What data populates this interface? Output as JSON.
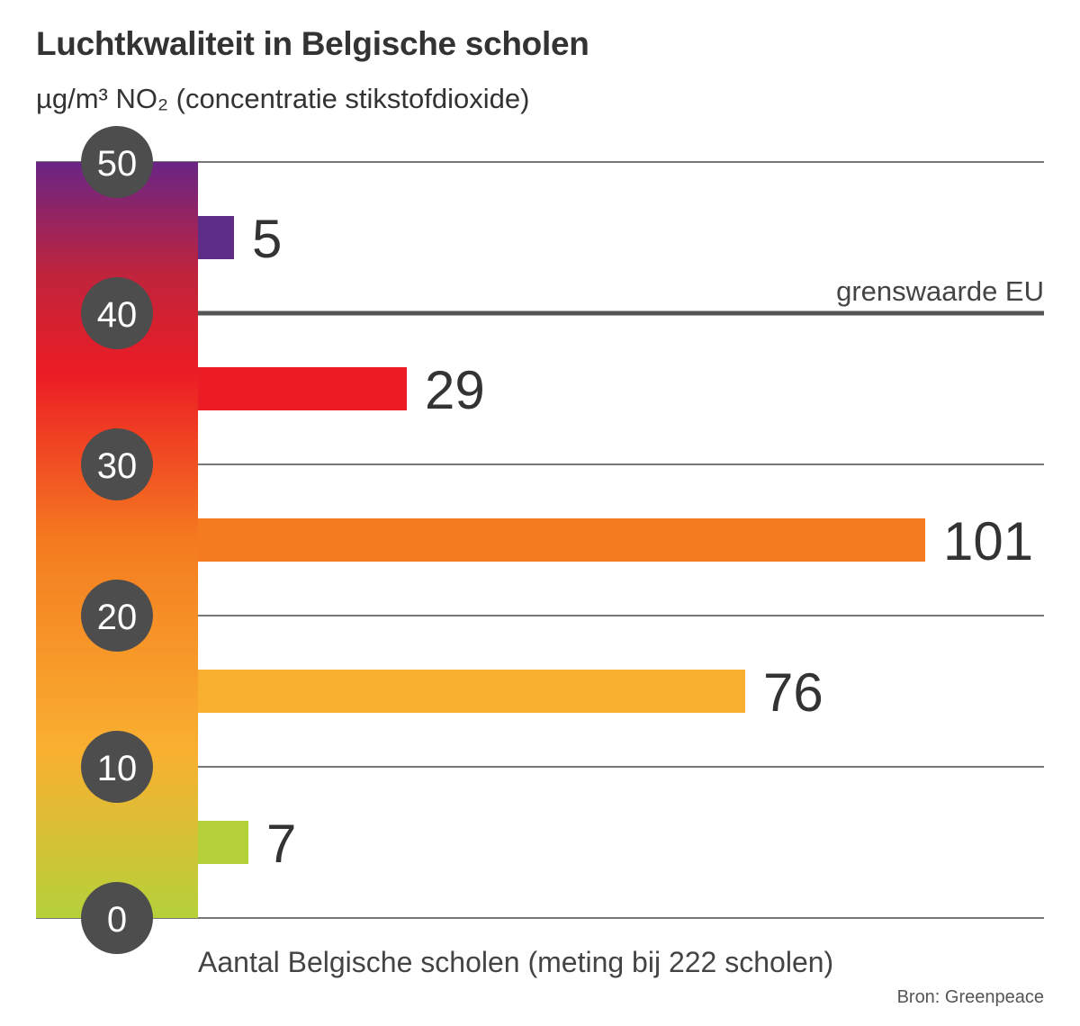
{
  "title": "Luchtkwaliteit in Belgische scholen",
  "subtitle": "µg/m³ NO₂ (concentratie stikstofdioxide)",
  "source": "Bron: Greenpeace",
  "chart_data": {
    "type": "bar",
    "orientation": "horizontal",
    "title": "Luchtkwaliteit in Belgische scholen",
    "ylabel": "µg/m³ NO₂ (concentratie stikstofdioxide)",
    "xlabel": "Aantal Belgische scholen (meting bij 222 scholen)",
    "y_ticks": [
      0,
      10,
      20,
      30,
      40,
      50
    ],
    "ylim": [
      0,
      50
    ],
    "bins": [
      {
        "range": [
          0,
          10
        ],
        "value": 7,
        "color": "#b5d13a"
      },
      {
        "range": [
          10,
          20
        ],
        "value": 76,
        "color": "#f9b031"
      },
      {
        "range": [
          20,
          30
        ],
        "value": 101,
        "color": "#f47b20"
      },
      {
        "range": [
          30,
          40
        ],
        "value": 29,
        "color": "#ec1c24"
      },
      {
        "range": [
          40,
          50
        ],
        "value": 5,
        "color": "#5d2d87"
      }
    ],
    "reference_line": {
      "value": 40,
      "label": "grenswaarde EU"
    },
    "grid": true,
    "scale_gradient": [
      "#b5d13a",
      "#f9b031",
      "#f47b20",
      "#ec1c24",
      "#c0243c",
      "#6a2485"
    ]
  }
}
